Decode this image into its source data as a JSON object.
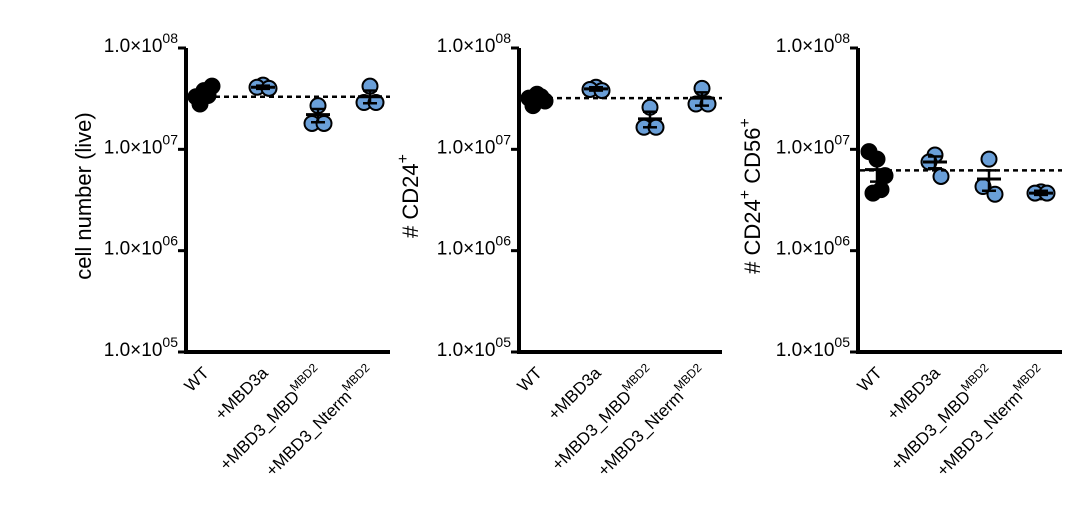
{
  "chart_data": [
    {
      "type": "scatter",
      "ylabel": "cell number (live)",
      "yscale": "log",
      "ylim": [
        100000,
        100000000
      ],
      "ytick_labels": [
        "1.0×10",
        "1.0×10",
        "1.0×10",
        "1.0×10"
      ],
      "ytick_exponents": [
        "08",
        "07",
        "06",
        "05"
      ],
      "ytick_values": [
        100000000,
        10000000,
        1000000,
        100000
      ],
      "categories": [
        {
          "base": "WT",
          "sup": ""
        },
        {
          "base": "+MBD3a",
          "sup": ""
        },
        {
          "base": "+MBD3_MBD",
          "sup": "MBD2"
        },
        {
          "base": "+MBD3_Nterm",
          "sup": "MBD2"
        }
      ],
      "reference_line": 33000000,
      "groups": [
        {
          "color": "#000000",
          "points": [
            33000000,
            38000000,
            42000000,
            34000000,
            28000000
          ],
          "mean": 34000000,
          "sem_low": 30000000,
          "sem_high": 38000000
        },
        {
          "color": "#6a9fd8",
          "points": [
            43000000,
            41000000,
            40000000
          ],
          "mean": 41000000,
          "sem_low": 39500000,
          "sem_high": 42500000
        },
        {
          "color": "#6a9fd8",
          "points": [
            27000000,
            18000000,
            18000000
          ],
          "mean": 22000000,
          "sem_low": 18500000,
          "sem_high": 25000000
        },
        {
          "color": "#6a9fd8",
          "points": [
            42000000,
            29000000,
            29000000
          ],
          "mean": 33000000,
          "sem_low": 28500000,
          "sem_high": 38000000
        }
      ]
    },
    {
      "type": "scatter",
      "ylabel": "# CD24",
      "ylabel_sup": "+",
      "yscale": "log",
      "ylim": [
        100000,
        100000000
      ],
      "ytick_labels": [
        "1.0×10",
        "1.0×10",
        "1.0×10",
        "1.0×10"
      ],
      "ytick_exponents": [
        "08",
        "07",
        "06",
        "05"
      ],
      "ytick_values": [
        100000000,
        10000000,
        1000000,
        100000
      ],
      "categories": [
        {
          "base": "WT",
          "sup": ""
        },
        {
          "base": "+MBD3a",
          "sup": ""
        },
        {
          "base": "+MBD3_MBD",
          "sup": "MBD2"
        },
        {
          "base": "+MBD3_Nterm",
          "sup": "MBD2"
        }
      ],
      "reference_line": 32000000,
      "groups": [
        {
          "color": "#000000",
          "points": [
            32000000,
            35000000,
            30000000,
            33000000,
            27000000
          ],
          "mean": 31500000,
          "sem_low": 28500000,
          "sem_high": 34500000
        },
        {
          "color": "#6a9fd8",
          "points": [
            41000000,
            39000000,
            38000000
          ],
          "mean": 39500000,
          "sem_low": 38000000,
          "sem_high": 41000000
        },
        {
          "color": "#6a9fd8",
          "points": [
            26000000,
            16500000,
            16500000
          ],
          "mean": 20000000,
          "sem_low": 16500000,
          "sem_high": 23500000
        },
        {
          "color": "#6a9fd8",
          "points": [
            40000000,
            28000000,
            28000000
          ],
          "mean": 32000000,
          "sem_low": 27000000,
          "sem_high": 36500000
        }
      ]
    },
    {
      "type": "scatter",
      "ylabel": "# CD24",
      "ylabel_sup": "+",
      "ylabel2": " CD56",
      "ylabel2_sup": "+",
      "yscale": "log",
      "ylim": [
        100000,
        100000000
      ],
      "ytick_labels": [
        "1.0×10",
        "1.0×10",
        "1.0×10",
        "1.0×10"
      ],
      "ytick_exponents": [
        "08",
        "07",
        "06",
        "05"
      ],
      "ytick_values": [
        100000000,
        10000000,
        1000000,
        100000
      ],
      "categories": [
        {
          "base": "WT",
          "sup": ""
        },
        {
          "base": "+MBD3a",
          "sup": ""
        },
        {
          "base": "+MBD3_MBD",
          "sup": "MBD2"
        },
        {
          "base": "+MBD3_Nterm",
          "sup": "MBD2"
        }
      ],
      "reference_line": 6200000,
      "groups": [
        {
          "color": "#000000",
          "points": [
            9500000,
            8000000,
            5500000,
            4000000,
            3700000
          ],
          "mean": 6300000,
          "sem_low": 4800000,
          "sem_high": 7700000
        },
        {
          "color": "#6a9fd8",
          "points": [
            8800000,
            7500000,
            5400000
          ],
          "mean": 7500000,
          "sem_low": 6500000,
          "sem_high": 8500000
        },
        {
          "color": "#6a9fd8",
          "points": [
            8000000,
            4300000,
            3600000
          ],
          "mean": 5100000,
          "sem_low": 3900000,
          "sem_high": 6200000
        },
        {
          "color": "#6a9fd8",
          "points": [
            3800000,
            3700000,
            3700000
          ],
          "mean": 3700000,
          "sem_low": 3550000,
          "sem_high": 3900000
        }
      ]
    }
  ]
}
